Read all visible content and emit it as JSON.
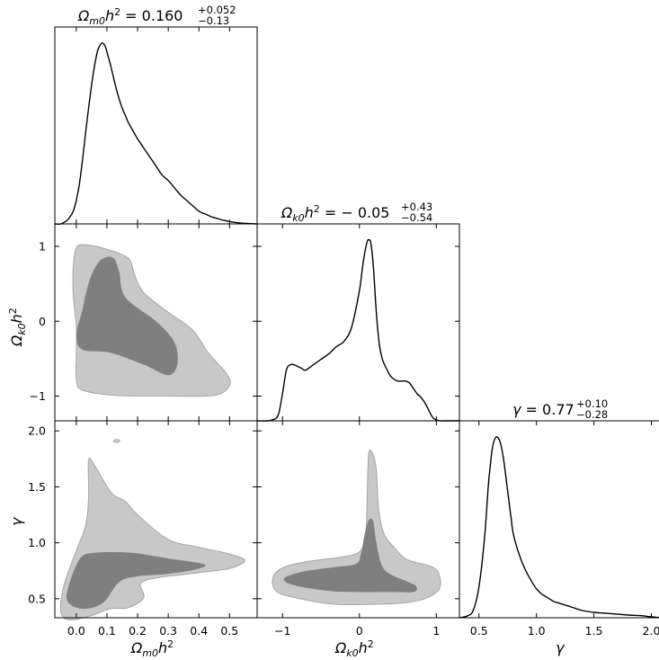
{
  "chart_data": {
    "type": "corner",
    "parameters": [
      {
        "id": "om",
        "label": "Ωm0h2",
        "range": [
          -0.07,
          0.59
        ],
        "ticks": [
          0.0,
          0.1,
          0.2,
          0.3,
          0.4,
          0.5
        ],
        "tick_labels": [
          "0.0",
          "0.1",
          "0.2",
          "0.3",
          "0.4",
          "0.5"
        ]
      },
      {
        "id": "ok",
        "label": "Ωk0h2",
        "range": [
          -1.33,
          1.3
        ],
        "ticks": [
          -1,
          0,
          1
        ],
        "tick_labels": [
          "−1",
          "0",
          "1"
        ]
      },
      {
        "id": "gamma",
        "label": "γ",
        "range": [
          0.33,
          2.09
        ],
        "ticks": [
          0.5,
          1.0,
          1.5,
          2.0
        ],
        "tick_labels": [
          "0.5",
          "1.0",
          "1.5",
          "2.0"
        ]
      }
    ],
    "titles": {
      "om": {
        "name": "Ωm0h2",
        "value": "0.160",
        "plus": "+0.052",
        "minus": "−0.13"
      },
      "ok": {
        "name": "Ωk0h2",
        "value": "− 0.05",
        "plus": "+0.43",
        "minus": "−0.54"
      },
      "gamma": {
        "name": "γ",
        "value": "0.77",
        "plus": "+0.10",
        "minus": "−0.28"
      }
    },
    "marginals": {
      "om": {
        "x": [
          -0.07,
          -0.05,
          -0.03,
          -0.02,
          -0.01,
          0.0,
          0.01,
          0.02,
          0.03,
          0.04,
          0.05,
          0.06,
          0.07,
          0.08,
          0.085,
          0.09,
          0.095,
          0.1,
          0.11,
          0.12,
          0.13,
          0.14,
          0.15,
          0.16,
          0.17,
          0.18,
          0.19,
          0.2,
          0.22,
          0.24,
          0.26,
          0.28,
          0.3,
          0.32,
          0.34,
          0.36,
          0.38,
          0.4,
          0.42,
          0.44,
          0.46,
          0.48,
          0.5,
          0.52,
          0.54,
          0.56,
          0.59
        ],
        "y": [
          0.0,
          0.0,
          0.02,
          0.04,
          0.07,
          0.13,
          0.22,
          0.35,
          0.5,
          0.64,
          0.77,
          0.88,
          0.96,
          0.995,
          1.0,
          0.995,
          0.98,
          0.95,
          0.89,
          0.82,
          0.75,
          0.69,
          0.64,
          0.6,
          0.56,
          0.53,
          0.5,
          0.47,
          0.42,
          0.37,
          0.32,
          0.27,
          0.24,
          0.2,
          0.16,
          0.13,
          0.1,
          0.07,
          0.055,
          0.04,
          0.03,
          0.02,
          0.013,
          0.008,
          0.004,
          0.002,
          0.0
        ]
      },
      "ok": {
        "x": [
          -1.33,
          -1.2,
          -1.1,
          -1.05,
          -1.0,
          -0.95,
          -0.9,
          -0.85,
          -0.8,
          -0.75,
          -0.7,
          -0.6,
          -0.5,
          -0.4,
          -0.3,
          -0.2,
          -0.1,
          0.0,
          0.05,
          0.1,
          0.13,
          0.15,
          0.18,
          0.22,
          0.26,
          0.3,
          0.35,
          0.4,
          0.45,
          0.5,
          0.55,
          0.6,
          0.65,
          0.7,
          0.75,
          0.8,
          0.85,
          0.9,
          0.95,
          1.0,
          1.05,
          1.1,
          1.2,
          1.3
        ],
        "y": [
          0.0,
          0.0,
          0.01,
          0.04,
          0.15,
          0.28,
          0.31,
          0.31,
          0.3,
          0.29,
          0.28,
          0.31,
          0.34,
          0.37,
          0.41,
          0.44,
          0.52,
          0.72,
          0.88,
          0.99,
          1.0,
          0.98,
          0.86,
          0.6,
          0.42,
          0.34,
          0.29,
          0.25,
          0.23,
          0.22,
          0.22,
          0.22,
          0.21,
          0.18,
          0.15,
          0.13,
          0.1,
          0.06,
          0.02,
          0.005,
          0.0,
          0.0,
          0.0,
          0.0
        ]
      },
      "gamma": {
        "x": [
          0.33,
          0.4,
          0.45,
          0.5,
          0.55,
          0.58,
          0.6,
          0.62,
          0.65,
          0.68,
          0.7,
          0.72,
          0.75,
          0.78,
          0.8,
          0.85,
          0.9,
          0.95,
          1.0,
          1.05,
          1.1,
          1.15,
          1.2,
          1.3,
          1.4,
          1.5,
          1.6,
          1.7,
          1.8,
          1.9,
          2.0,
          2.09
        ],
        "y": [
          0.0,
          0.01,
          0.04,
          0.17,
          0.45,
          0.72,
          0.85,
          0.95,
          1.0,
          0.98,
          0.93,
          0.85,
          0.7,
          0.55,
          0.46,
          0.35,
          0.27,
          0.21,
          0.16,
          0.13,
          0.11,
          0.09,
          0.08,
          0.06,
          0.04,
          0.03,
          0.025,
          0.02,
          0.015,
          0.012,
          0.005,
          0.0
        ]
      }
    },
    "contours": [
      {
        "x": "om",
        "y": "ok",
        "outer": [
          [
            0.0,
            0.98
          ],
          [
            0.03,
            1.02
          ],
          [
            0.1,
            0.96
          ],
          [
            0.17,
            0.84
          ],
          [
            0.19,
            0.62
          ],
          [
            0.22,
            0.38
          ],
          [
            0.3,
            0.12
          ],
          [
            0.38,
            -0.12
          ],
          [
            0.43,
            -0.42
          ],
          [
            0.49,
            -0.7
          ],
          [
            0.5,
            -0.86
          ],
          [
            0.45,
            -0.99
          ],
          [
            0.3,
            -1.0
          ],
          [
            0.13,
            -0.99
          ],
          [
            0.02,
            -0.92
          ],
          [
            0.0,
            -0.77
          ],
          [
            0.0,
            -0.48
          ],
          [
            0.0,
            -0.08
          ],
          [
            -0.01,
            0.35
          ],
          [
            -0.01,
            0.72
          ]
        ],
        "inner": [
          [
            0.05,
            0.62
          ],
          [
            0.08,
            0.82
          ],
          [
            0.12,
            0.85
          ],
          [
            0.14,
            0.66
          ],
          [
            0.16,
            0.32
          ],
          [
            0.26,
            0.0
          ],
          [
            0.32,
            -0.28
          ],
          [
            0.33,
            -0.57
          ],
          [
            0.3,
            -0.72
          ],
          [
            0.22,
            -0.58
          ],
          [
            0.11,
            -0.42
          ],
          [
            0.02,
            -0.38
          ],
          [
            0.0,
            -0.18
          ],
          [
            0.02,
            0.15
          ],
          [
            0.03,
            0.35
          ]
        ]
      },
      {
        "x": "om",
        "y": "gamma",
        "outer": [
          [
            0.04,
            1.74
          ],
          [
            0.06,
            1.69
          ],
          [
            0.09,
            1.55
          ],
          [
            0.12,
            1.43
          ],
          [
            0.16,
            1.37
          ],
          [
            0.2,
            1.25
          ],
          [
            0.3,
            1.03
          ],
          [
            0.4,
            0.96
          ],
          [
            0.5,
            0.9
          ],
          [
            0.55,
            0.84
          ],
          [
            0.5,
            0.77
          ],
          [
            0.42,
            0.74
          ],
          [
            0.33,
            0.71
          ],
          [
            0.27,
            0.69
          ],
          [
            0.21,
            0.64
          ],
          [
            0.22,
            0.51
          ],
          [
            0.17,
            0.42
          ],
          [
            0.11,
            0.41
          ],
          [
            0.05,
            0.35
          ],
          [
            -0.02,
            0.31
          ],
          [
            -0.05,
            0.38
          ],
          [
            -0.04,
            0.62
          ],
          [
            0.0,
            0.93
          ],
          [
            0.03,
            1.15
          ],
          [
            0.04,
            1.4
          ]
        ],
        "inner": [
          [
            0.01,
            0.85
          ],
          [
            0.06,
            0.91
          ],
          [
            0.18,
            0.91
          ],
          [
            0.3,
            0.86
          ],
          [
            0.4,
            0.82
          ],
          [
            0.42,
            0.79
          ],
          [
            0.37,
            0.75
          ],
          [
            0.29,
            0.72
          ],
          [
            0.2,
            0.7
          ],
          [
            0.14,
            0.65
          ],
          [
            0.09,
            0.47
          ],
          [
            0.03,
            0.41
          ],
          [
            -0.02,
            0.45
          ],
          [
            -0.03,
            0.56
          ]
        ]
      },
      {
        "x": "ok",
        "y": "gamma",
        "outer": [
          [
            0.12,
            1.79
          ],
          [
            0.17,
            1.8
          ],
          [
            0.22,
            1.65
          ],
          [
            0.25,
            1.3
          ],
          [
            0.32,
            1.08
          ],
          [
            0.45,
            0.96
          ],
          [
            0.62,
            0.85
          ],
          [
            0.96,
            0.78
          ],
          [
            1.05,
            0.68
          ],
          [
            1.03,
            0.58
          ],
          [
            0.85,
            0.5
          ],
          [
            0.55,
            0.46
          ],
          [
            0.15,
            0.45
          ],
          [
            -0.3,
            0.45
          ],
          [
            -0.7,
            0.49
          ],
          [
            -1.07,
            0.56
          ],
          [
            -1.12,
            0.7
          ],
          [
            -0.95,
            0.79
          ],
          [
            -0.6,
            0.84
          ],
          [
            -0.25,
            0.87
          ],
          [
            0.0,
            0.92
          ],
          [
            0.08,
            1.08
          ],
          [
            0.1,
            1.4
          ]
        ],
        "inner": [
          [
            0.12,
            1.2
          ],
          [
            0.18,
            1.19
          ],
          [
            0.22,
            1.0
          ],
          [
            0.29,
            0.8
          ],
          [
            0.4,
            0.72
          ],
          [
            0.6,
            0.66
          ],
          [
            0.74,
            0.61
          ],
          [
            0.7,
            0.56
          ],
          [
            0.4,
            0.56
          ],
          [
            0.0,
            0.56
          ],
          [
            -0.4,
            0.57
          ],
          [
            -0.85,
            0.62
          ],
          [
            -0.98,
            0.68
          ],
          [
            -0.75,
            0.74
          ],
          [
            -0.35,
            0.78
          ],
          [
            -0.05,
            0.81
          ],
          [
            0.02,
            0.9
          ],
          [
            0.06,
            1.05
          ]
        ]
      }
    ],
    "islands": [
      {
        "x": "om",
        "y": "gamma",
        "cx": 0.132,
        "cy": 1.91
      }
    ],
    "colors": {
      "outer": "#c8c8c8",
      "inner": "#7f7f7f",
      "outer_edge": "#a5a5a5",
      "line": "#000000"
    }
  }
}
